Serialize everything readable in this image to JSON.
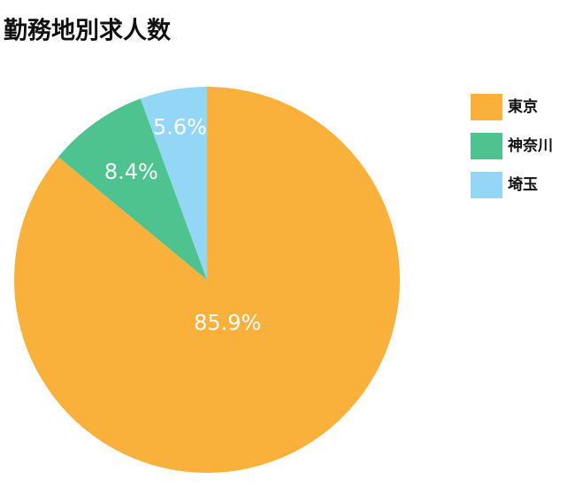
{
  "chart_data": {
    "type": "pie",
    "title": "勤務地別求人数",
    "categories": [
      "東京",
      "神奈川",
      "埼玉"
    ],
    "values": [
      85.9,
      8.4,
      5.6
    ],
    "value_labels": [
      "85.9%",
      "8.4%",
      "5.6%"
    ],
    "colors": [
      "#f9b13b",
      "#4fc38f",
      "#93d6f5"
    ],
    "legend": "top-right"
  }
}
